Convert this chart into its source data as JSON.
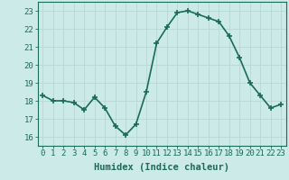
{
  "x": [
    0,
    1,
    2,
    3,
    4,
    5,
    6,
    7,
    8,
    9,
    10,
    11,
    12,
    13,
    14,
    15,
    16,
    17,
    18,
    19,
    20,
    21,
    22,
    23
  ],
  "y": [
    18.3,
    18.0,
    18.0,
    17.9,
    17.5,
    18.2,
    17.6,
    16.6,
    16.1,
    16.7,
    18.5,
    21.2,
    22.1,
    22.9,
    23.0,
    22.8,
    22.6,
    22.4,
    21.6,
    20.4,
    19.0,
    18.3,
    17.6,
    17.8
  ],
  "line_color": "#1a6b5a",
  "marker": "+",
  "marker_size": 5,
  "line_width": 1.2,
  "bg_color": "#cceae7",
  "grid_color": "#b8d8d4",
  "xlabel": "Humidex (Indice chaleur)",
  "ylim": [
    15.5,
    23.5
  ],
  "xlim": [
    -0.5,
    23.5
  ],
  "yticks": [
    16,
    17,
    18,
    19,
    20,
    21,
    22,
    23
  ],
  "xticks": [
    0,
    1,
    2,
    3,
    4,
    5,
    6,
    7,
    8,
    9,
    10,
    11,
    12,
    13,
    14,
    15,
    16,
    17,
    18,
    19,
    20,
    21,
    22,
    23
  ],
  "xlabel_fontsize": 7.5,
  "tick_fontsize": 6.5,
  "axis_color": "#1a6b5a"
}
